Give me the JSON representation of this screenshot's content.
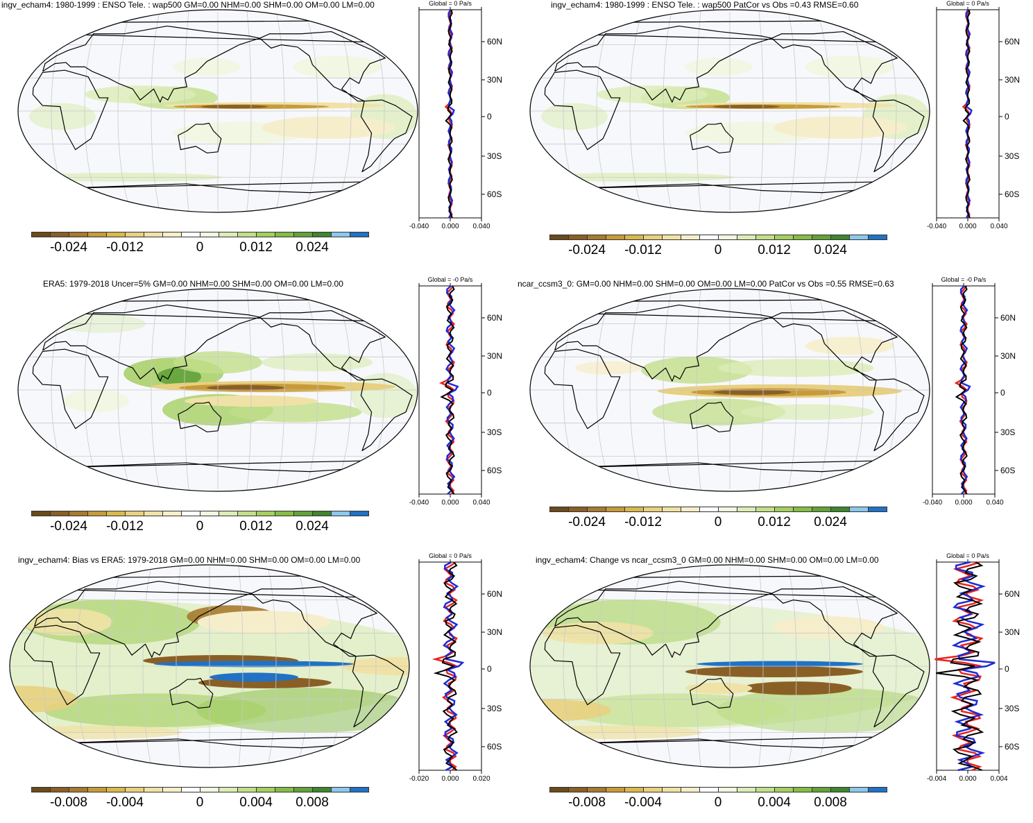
{
  "colors": {
    "scale": [
      "#6b4a1c",
      "#8a5f26",
      "#a77a30",
      "#c79a3a",
      "#d9b84d",
      "#e8d080",
      "#f0e2a6",
      "#f6eecb",
      "#ffffff",
      "#f1f7e2",
      "#dcecb7",
      "#c2df8a",
      "#a4cf60",
      "#86bc45",
      "#63a23a",
      "#3f8530",
      "#8cc8ec",
      "#2172c4"
    ],
    "coast": "#000000",
    "ocean": "#f7f8fc",
    "profile_red": "#e8241f",
    "profile_blue": "#1c2bd6",
    "profile_black": "#000000"
  },
  "panels": [
    {
      "title": "ingv_echam4: 1980-1999 : ENSO Tele. : wap500 GM=0.00 NHM=0.00 SHM=0.00 OM=0.00 LM=0.00",
      "profile_label": "Global = 0 Pa/s",
      "lat_labels": [
        "60N",
        "30N",
        "0",
        "30S",
        "60S"
      ],
      "x_ticks": [
        "-0.040",
        "0.000",
        "0.040"
      ],
      "colorbar_ticks": [
        "-0.024",
        "-0.012",
        "0",
        "0.012",
        "0.024"
      ],
      "pattern": "model"
    },
    {
      "title": "ingv_echam4: 1980-1999 : ENSO Tele. : wap500 PatCor vs Obs =0.43 RMSE=0.60",
      "profile_label": "Global = 0 Pa/s",
      "lat_labels": [
        "60N",
        "30N",
        "0",
        "30S",
        "60S"
      ],
      "x_ticks": [
        "-0.040",
        "0.000",
        "0.040"
      ],
      "colorbar_ticks": [
        "-0.024",
        "-0.012",
        "0",
        "0.012",
        "0.024"
      ],
      "pattern": "model"
    },
    {
      "title": "ERA5: 1979-2018 Uncer=5% GM=0.00 NHM=0.00 SHM=0.00 OM=0.00 LM=0.00",
      "profile_label": "Global = -0 Pa/s",
      "lat_labels": [
        "60N",
        "30N",
        "0",
        "30S",
        "60S"
      ],
      "x_ticks": [
        "-0.040",
        "0.000",
        "0.040"
      ],
      "colorbar_ticks": [
        "-0.024",
        "-0.012",
        "0",
        "0.012",
        "0.024"
      ],
      "pattern": "obs"
    },
    {
      "title": "ncar_ccsm3_0: GM=0.00 NHM=0.00 SHM=0.00 OM=0.00 LM=0.00 PatCor vs Obs =0.55 RMSE=0.63",
      "profile_label": "Global = -0 Pa/s",
      "lat_labels": [
        "60N",
        "30N",
        "0",
        "30S",
        "60S"
      ],
      "x_ticks": [
        "-0.040",
        "0.000",
        "0.040"
      ],
      "colorbar_ticks": [
        "-0.024",
        "-0.012",
        "0",
        "0.012",
        "0.024"
      ],
      "pattern": "ccsm"
    },
    {
      "title": "ingv_echam4: Bias vs ERA5: 1979-2018 GM=0.00 NHM=0.00 SHM=0.00 OM=0.00 LM=0.00",
      "profile_label": "Global = 0 Pa/s",
      "lat_labels": [
        "60N",
        "30N",
        "0",
        "30S",
        "60S"
      ],
      "x_ticks": [
        "-0.020",
        "0.000",
        "0.020"
      ],
      "colorbar_ticks": [
        "-0.008",
        "-0.004",
        "0",
        "0.004",
        "0.008"
      ],
      "pattern": "bias"
    },
    {
      "title": "ingv_echam4: Change vs ncar_ccsm3_0 GM=0.00 NHM=0.00 SHM=0.00 OM=0.00 LM=0.00",
      "profile_label": "Global = 0 Pa/s",
      "lat_labels": [
        "60N",
        "30N",
        "0",
        "30S",
        "60S"
      ],
      "x_ticks": [
        "-0.004",
        "0.000",
        "0.004"
      ],
      "colorbar_ticks": [
        "-0.008",
        "-0.004",
        "0",
        "0.004",
        "0.008"
      ],
      "pattern": "change"
    }
  ]
}
